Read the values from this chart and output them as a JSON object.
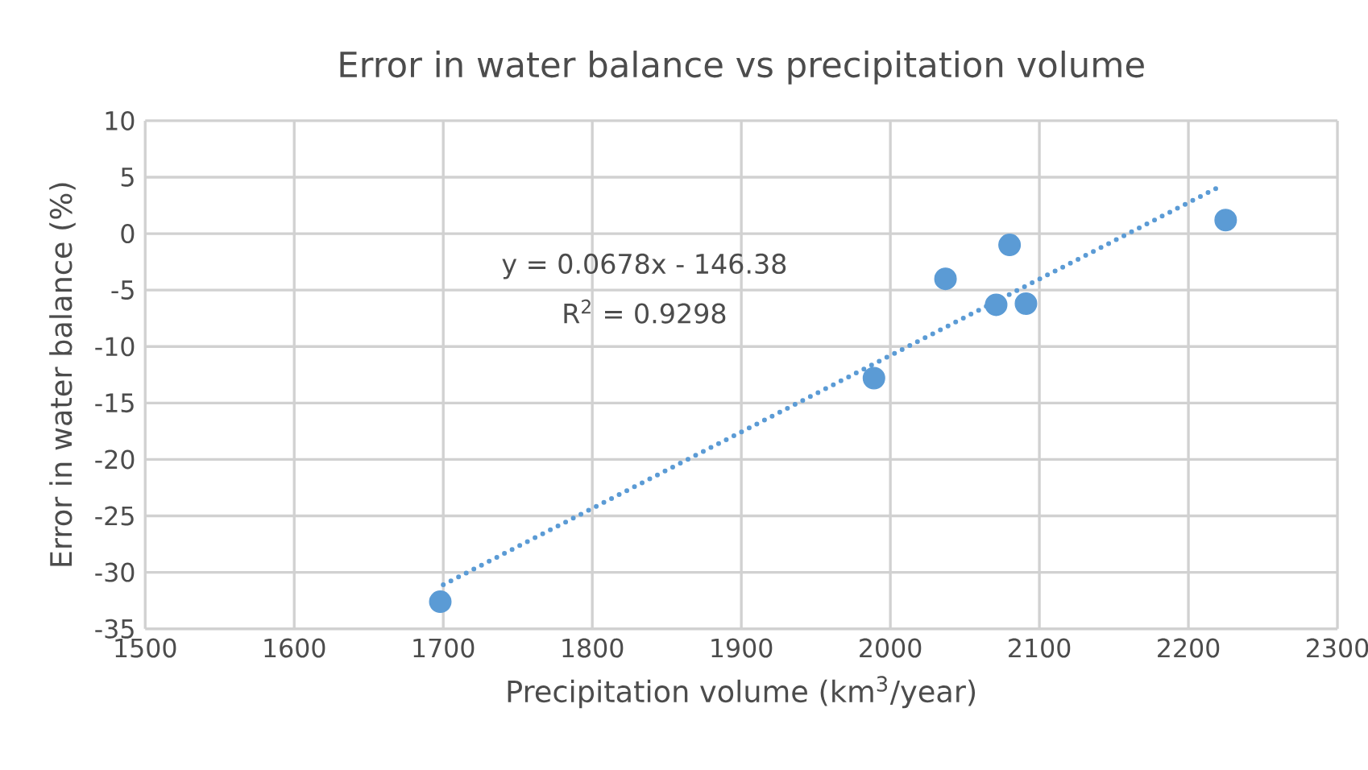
{
  "chart_data": {
    "type": "scatter",
    "title": "Error in water balance vs precipitation volume",
    "xlabel": "Precipitation volume (km$^{3}$/year)",
    "ylabel": "Error in water balance (%)",
    "series": [
      {
        "type": "scatter",
        "marker": "circle",
        "color": "#5b9bd5",
        "x": [
          1698,
          1989,
          2037,
          2071,
          2080,
          2091,
          2225
        ],
        "values": [
          -32.6,
          -12.8,
          -4.0,
          -6.3,
          -1.0,
          -6.2,
          1.2
        ]
      },
      {
        "type": "line",
        "line_style": "dotted",
        "marker": "none",
        "color": "#5b9bd5",
        "x": [
          1700,
          2223
        ],
        "values": [
          -31.1,
          4.3
        ]
      }
    ],
    "annotations": [
      "y = 0.0678x - 146.38",
      "R$^{2}$ = 0.9298"
    ],
    "xlim": [
      1500,
      2300
    ],
    "ylim": [
      -35,
      10
    ],
    "xticks": [
      1500,
      1600,
      1700,
      1800,
      1900,
      2000,
      2100,
      2200,
      2300
    ],
    "yticks": [
      -35,
      -30,
      -25,
      -20,
      -15,
      -10,
      -5,
      0,
      5,
      10
    ],
    "grid": true
  }
}
